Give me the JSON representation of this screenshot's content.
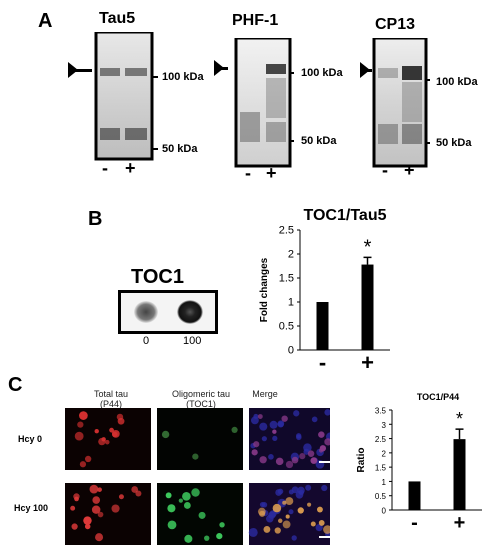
{
  "panelA": {
    "letter": "A",
    "blots": [
      {
        "title": "Tau5",
        "marker_high": "100 kDa",
        "marker_low": "50 kDa",
        "lane_minus": "-",
        "lane_plus": "+"
      },
      {
        "title": "PHF-1",
        "marker_high": "100 kDa",
        "marker_low": "50 kDa",
        "lane_minus": "-",
        "lane_plus": "+"
      },
      {
        "title": "CP13",
        "marker_high": "100 kDa",
        "marker_low": "50 kDa",
        "lane_minus": "-",
        "lane_plus": "+"
      }
    ]
  },
  "panelB": {
    "letter": "B",
    "dot_title": "TOC1",
    "dot_labels": [
      "0",
      "100"
    ]
  },
  "panelC": {
    "letter": "C",
    "col_headers": [
      {
        "line1": "Total tau",
        "line2": "(P44)"
      },
      {
        "line1": "Oligomeric tau",
        "line2": "(TOC1)"
      },
      {
        "line1": "Merge",
        "line2": ""
      }
    ],
    "row_labels": [
      "Hcy 0",
      "Hcy 100"
    ]
  },
  "chart_data": [
    {
      "type": "bar",
      "title": "TOC1/Tau5",
      "ylabel": "Fold changes",
      "xlabel": "",
      "categories": [
        "-",
        "+"
      ],
      "values": [
        1.0,
        1.78
      ],
      "errors": [
        0,
        0.15
      ],
      "significance": [
        "",
        "*"
      ],
      "ylim": [
        0,
        2.5
      ],
      "yticks": [
        "0",
        "0.5",
        "1",
        "1.5",
        "2",
        "2.5"
      ],
      "grid": false
    },
    {
      "type": "bar",
      "title": "TOC1/P44",
      "ylabel": "Ratio",
      "xlabel": "",
      "categories": [
        "-",
        "+"
      ],
      "values": [
        1.0,
        2.48
      ],
      "errors": [
        0,
        0.35
      ],
      "significance": [
        "",
        "*"
      ],
      "ylim": [
        0,
        3.5
      ],
      "yticks": [
        "0",
        "0.5",
        "1",
        "1.5",
        "2",
        "2.5",
        "3",
        "3.5"
      ],
      "grid": false
    }
  ]
}
